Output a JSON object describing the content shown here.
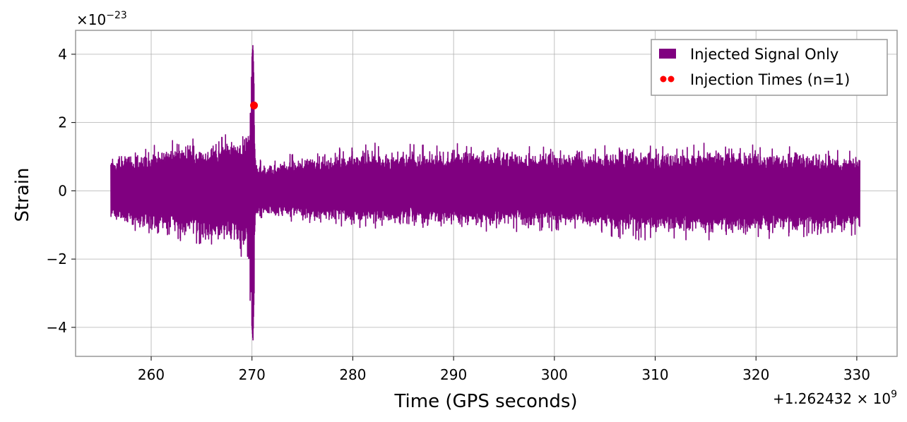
{
  "chart_data": {
    "type": "line",
    "xlabel": "Time (GPS seconds)",
    "ylabel": "Strain",
    "x_offset_label": "+1.262432",
    "x_offset_exp_label": "9",
    "y_scale_label": "10",
    "y_scale_exp_label": "−23",
    "xlim": [
      252.5,
      334.0
    ],
    "ylim": [
      -4.85,
      4.7
    ],
    "x_ticks": [
      260,
      270,
      280,
      290,
      300,
      310,
      320,
      330
    ],
    "x_tick_labels": [
      "260",
      "270",
      "280",
      "290",
      "300",
      "310",
      "320",
      "330"
    ],
    "y_ticks": [
      -4,
      -2,
      0,
      2,
      4
    ],
    "y_tick_labels": [
      "−4",
      "−2",
      "0",
      "2",
      "4"
    ],
    "grid": true,
    "legend_position": "top-right",
    "series": [
      {
        "name": "Injected Signal Only",
        "color": "#800080",
        "x_range": [
          256.0,
          330.3
        ],
        "envelope": [
          {
            "x": 256.0,
            "upper": 1.2,
            "lower": -1.0
          },
          {
            "x": 258.0,
            "upper": 1.3,
            "lower": -1.2
          },
          {
            "x": 260.0,
            "upper": 1.4,
            "lower": -1.4
          },
          {
            "x": 262.0,
            "upper": 1.5,
            "lower": -1.5
          },
          {
            "x": 264.0,
            "upper": 1.6,
            "lower": -1.6
          },
          {
            "x": 266.0,
            "upper": 1.6,
            "lower": -1.7
          },
          {
            "x": 268.0,
            "upper": 1.8,
            "lower": -1.8
          },
          {
            "x": 269.5,
            "upper": 2.0,
            "lower": -2.0
          },
          {
            "x": 270.1,
            "upper": 4.3,
            "lower": -4.4
          },
          {
            "x": 270.4,
            "upper": 0.9,
            "lower": -0.8
          },
          {
            "x": 280.0,
            "upper": 1.4,
            "lower": -1.1
          },
          {
            "x": 290.0,
            "upper": 1.4,
            "lower": -1.2
          },
          {
            "x": 300.0,
            "upper": 1.4,
            "lower": -1.2
          },
          {
            "x": 310.0,
            "upper": 1.4,
            "lower": -1.5
          },
          {
            "x": 320.0,
            "upper": 1.4,
            "lower": -1.4
          },
          {
            "x": 330.3,
            "upper": 1.2,
            "lower": -1.4
          }
        ]
      },
      {
        "name": "Injection Times (n=1)",
        "color": "#ff0000",
        "type": "scatter",
        "points": [
          {
            "x": 270.2,
            "y": 2.5
          }
        ]
      }
    ]
  }
}
